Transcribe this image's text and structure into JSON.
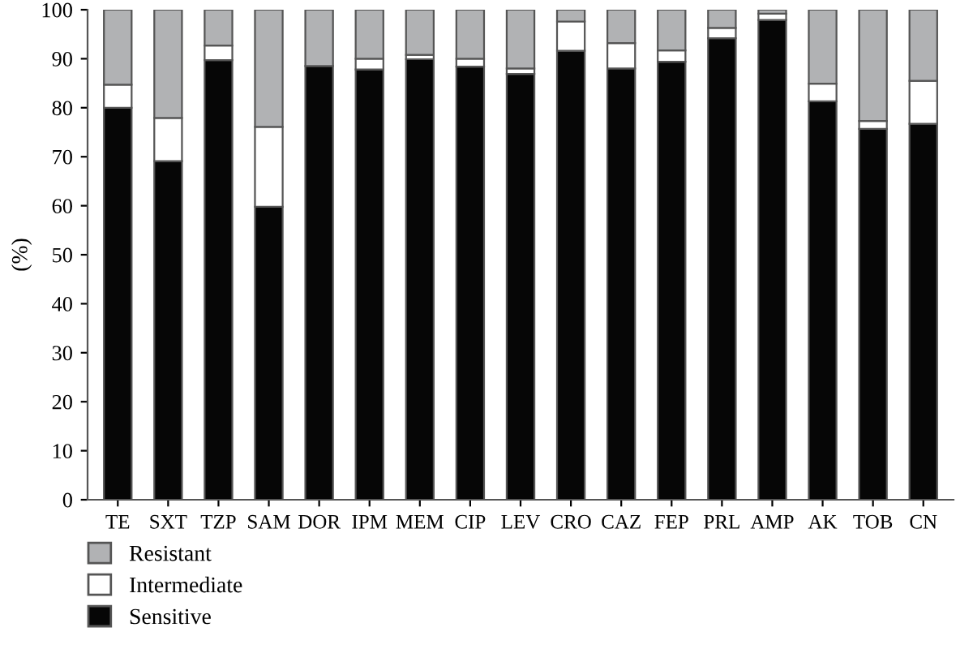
{
  "chart_data": {
    "type": "bar",
    "stacked": true,
    "ylabel": "(%)",
    "categories": [
      "TE",
      "SXT",
      "TZP",
      "SAM",
      "DOR",
      "IPM",
      "MEM",
      "CIP",
      "LEV",
      "CRO",
      "CAZ",
      "FEP",
      "PRL",
      "AMP",
      "AK",
      "TOB",
      "CN"
    ],
    "series": [
      {
        "name": "Sensitive",
        "color": "#060606",
        "values": [
          80.0,
          69.1,
          89.7,
          59.8,
          88.5,
          87.8,
          89.9,
          88.4,
          86.9,
          91.6,
          88.0,
          89.4,
          94.2,
          97.9,
          81.3,
          75.7,
          76.7
        ]
      },
      {
        "name": "Intermediate",
        "color": "#ffffff",
        "values": [
          4.7,
          8.8,
          3.0,
          16.3,
          null,
          2.2,
          0.9,
          1.6,
          1.1,
          6.0,
          5.2,
          2.3,
          2.1,
          1.3,
          3.6,
          1.6,
          8.8
        ]
      },
      {
        "name": "Resistant",
        "color": "#b1b2b4",
        "values": [
          15.3,
          22.1,
          7.3,
          23.9,
          11.5,
          10.0,
          9.2,
          10.0,
          12.0,
          2.4,
          6.8,
          8.3,
          3.7,
          0.8,
          15.1,
          22.7,
          14.5
        ]
      }
    ],
    "ylim": [
      0,
      100
    ],
    "yticks": [
      0,
      10,
      20,
      30,
      40,
      50,
      60,
      70,
      80,
      90,
      100
    ],
    "grid": false,
    "legend": "bottom left"
  }
}
